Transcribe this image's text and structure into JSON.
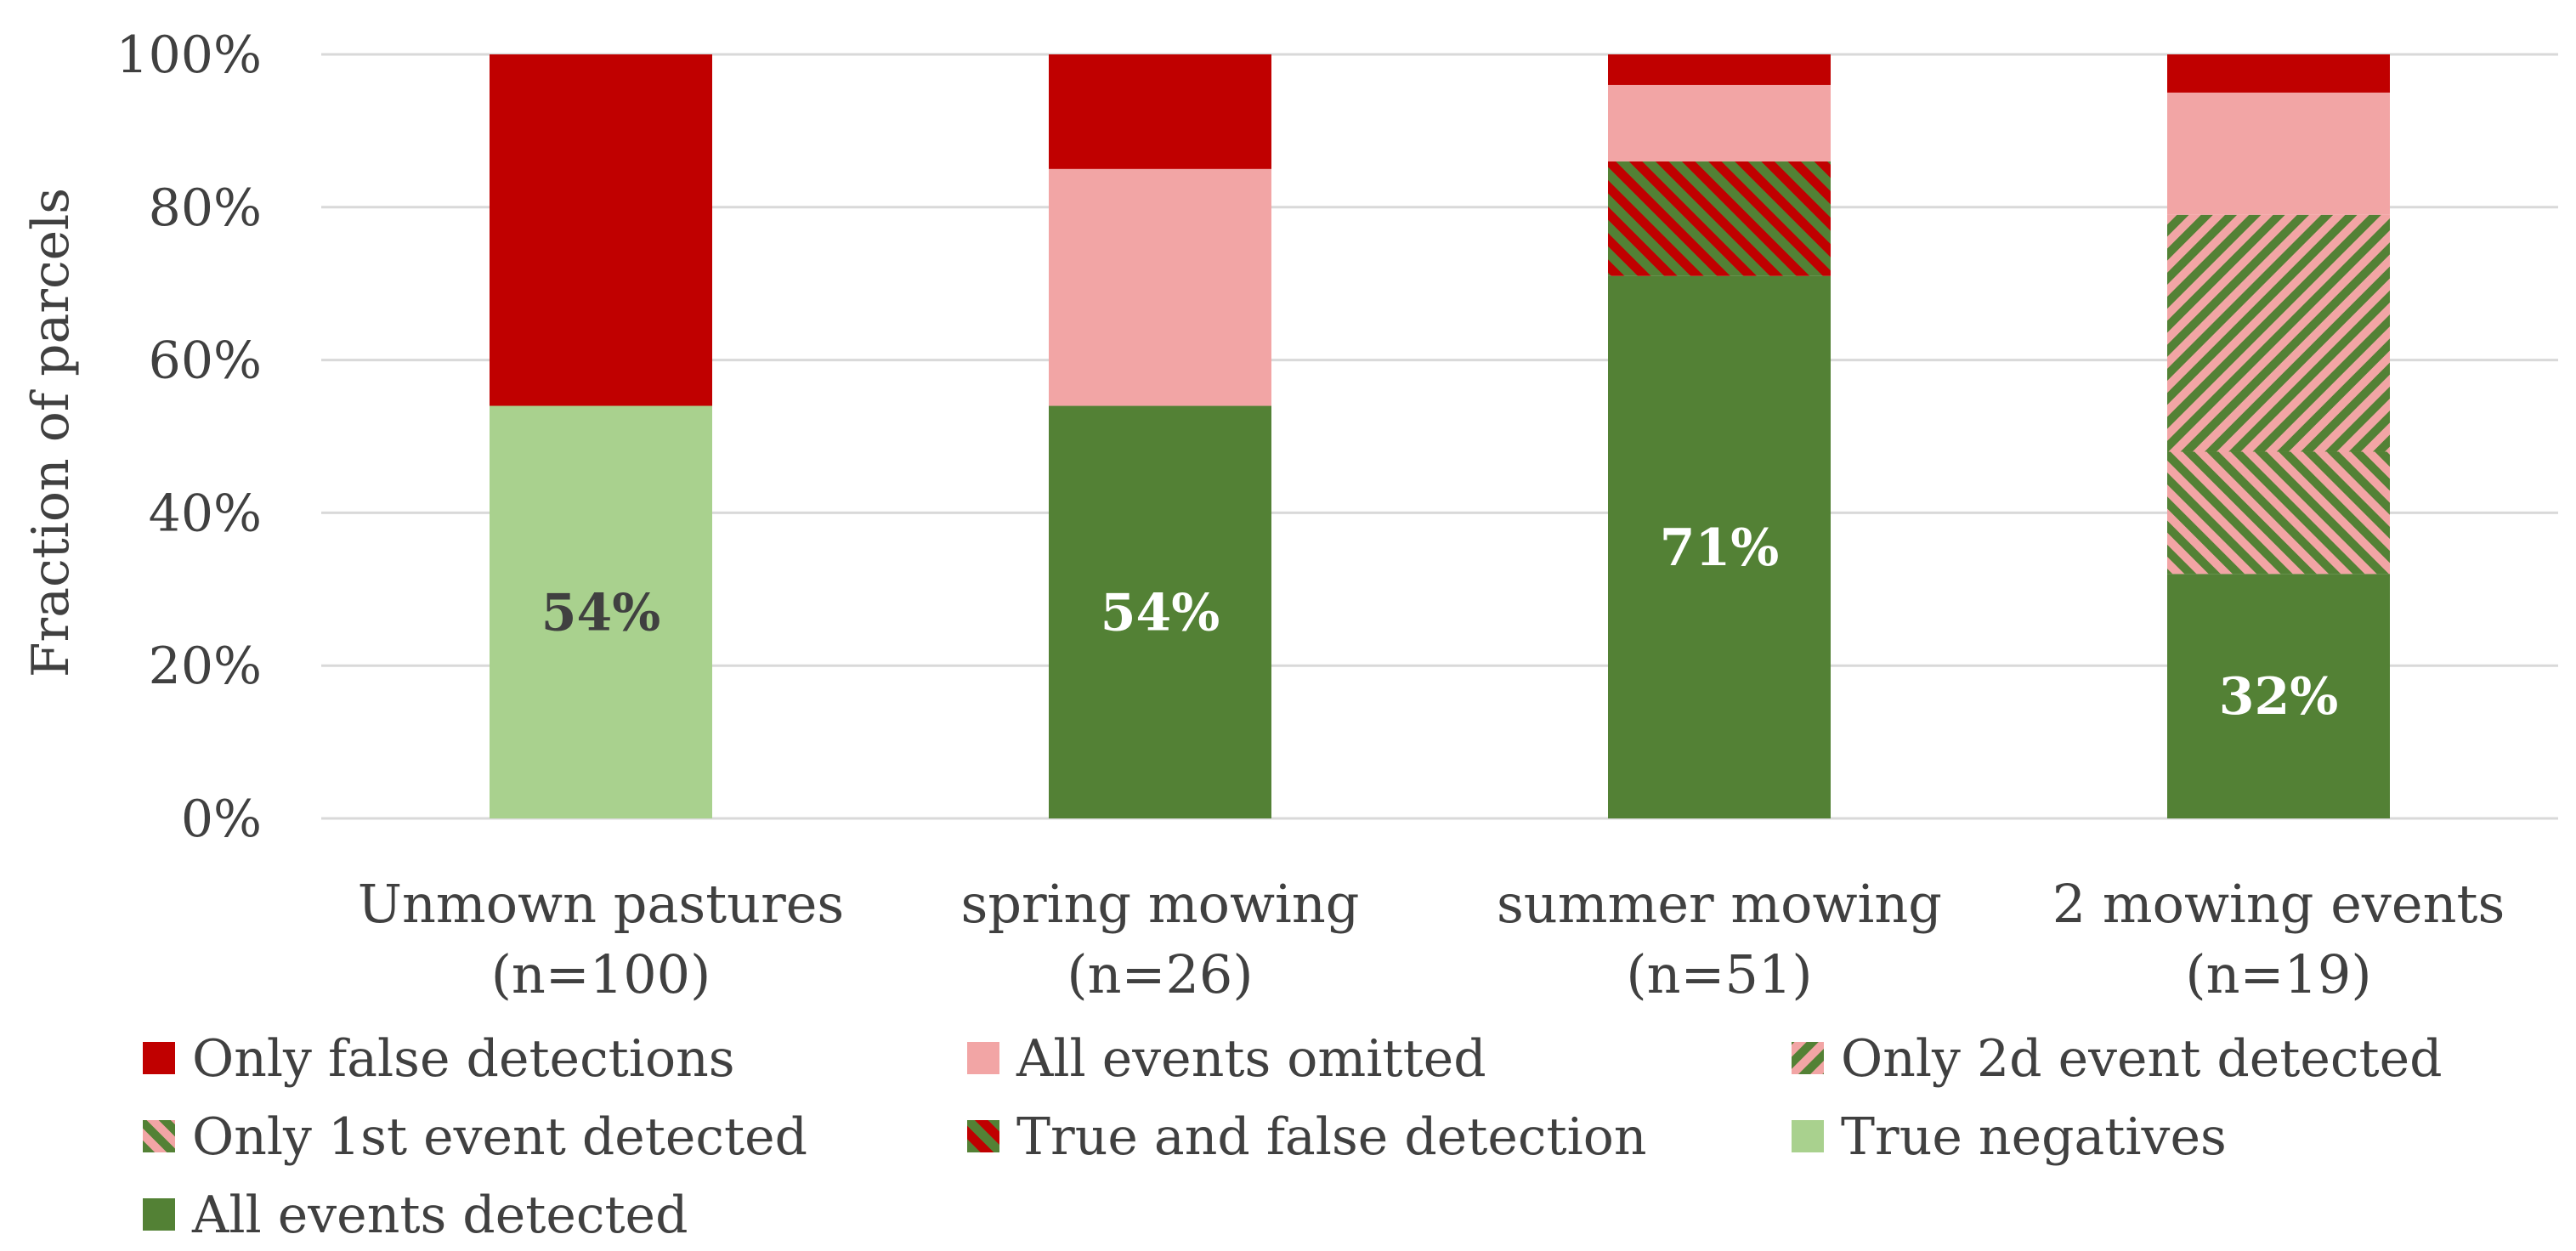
{
  "chart_data": {
    "type": "bar",
    "stacked": true,
    "ylabel": "Fraction of parcels",
    "ylim": [
      0,
      100
    ],
    "yticks": [
      "0%",
      "20%",
      "40%",
      "60%",
      "80%",
      "100%"
    ],
    "grid": true,
    "legend_position": "bottom",
    "categories": [
      {
        "line1": "Unmown pastures",
        "line2": "(n=100)"
      },
      {
        "line1": "spring mowing",
        "line2": "(n=26)"
      },
      {
        "line1": "summer mowing",
        "line2": "(n=51)"
      },
      {
        "line1": "2 mowing events",
        "line2": "(n=19)"
      }
    ],
    "series": [
      {
        "name": "All events detected",
        "key": "all_detected",
        "values": [
          0,
          54,
          71,
          32
        ]
      },
      {
        "name": "True negatives",
        "key": "true_neg",
        "values": [
          54,
          0,
          0,
          0
        ]
      },
      {
        "name": "Only 1st event detected",
        "key": "first_only",
        "values": [
          0,
          0,
          0,
          16
        ]
      },
      {
        "name": "Only 2d event detected",
        "key": "second_only",
        "values": [
          0,
          0,
          0,
          31
        ]
      },
      {
        "name": "True and false detection",
        "key": "true_false",
        "values": [
          0,
          0,
          15,
          0
        ]
      },
      {
        "name": "All events omitted",
        "key": "omitted",
        "values": [
          0,
          31,
          10,
          16
        ]
      },
      {
        "name": "Only false detections",
        "key": "false_only",
        "values": [
          46,
          15,
          4,
          5
        ]
      }
    ],
    "data_labels": [
      {
        "category": 0,
        "series": "true_neg",
        "text": "54%",
        "color": "#404040"
      },
      {
        "category": 1,
        "series": "all_detected",
        "text": "54%",
        "color": "#ffffff"
      },
      {
        "category": 2,
        "series": "all_detected",
        "text": "71%",
        "color": "#ffffff"
      },
      {
        "category": 3,
        "series": "all_detected",
        "text": "32%",
        "color": "#ffffff"
      }
    ],
    "legend_order": [
      "false_only",
      "omitted",
      "second_only",
      "first_only",
      "true_false",
      "true_neg",
      "all_detected"
    ]
  },
  "colors": {
    "dark_red": "#c00000",
    "pink": "#f2a5a5",
    "light_green": "#a9d18e",
    "dark_green": "#538135",
    "grid": "#d9d9d9",
    "text": "#404040"
  }
}
